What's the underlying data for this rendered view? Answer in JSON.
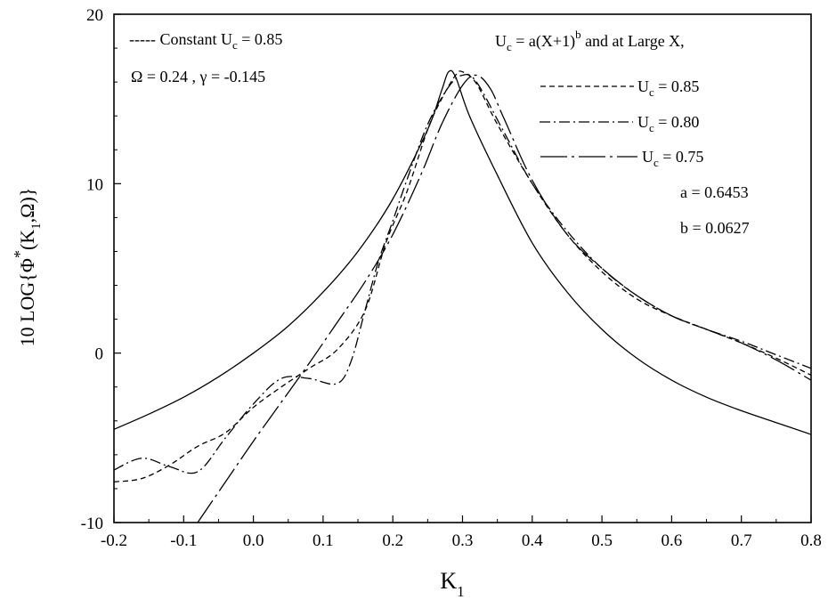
{
  "chart_data": {
    "type": "line",
    "xlabel": {
      "main": "K",
      "sub": "1"
    },
    "ylabel": {
      "parts": [
        "10 LOG{",
        "Φ",
        "*",
        "(K",
        "1",
        ",Ω)}"
      ]
    },
    "xlim": [
      -0.2,
      0.8
    ],
    "ylim": [
      -10,
      20
    ],
    "x_ticks": [
      "-0.2",
      "-0.1",
      "0.0",
      "0.1",
      "0.2",
      "0.3",
      "0.4",
      "0.5",
      "0.6",
      "0.7",
      "0.8"
    ],
    "y_ticks": [
      "-10",
      "0",
      "10",
      "20"
    ],
    "grid": false,
    "annotations": {
      "constant_legend": {
        "prefix": "----- Constant U",
        "sub": "c",
        "suffix": " = 0.85"
      },
      "params": "Ω = 0.24 , γ = -0.145",
      "formula": {
        "pre": "U",
        "sub": "c",
        "mid": " = a(X+1)",
        "sup": "b",
        "post": " and at Large X,"
      },
      "legend": [
        {
          "pre": "U",
          "sub": "c",
          "post": " = 0.85"
        },
        {
          "pre": "U",
          "sub": "c",
          "post": " = 0.80"
        },
        {
          "pre": "U",
          "sub": "c",
          "post": " = 0.75"
        }
      ],
      "a": "a = 0.6453",
      "b": "b = 0.0627"
    },
    "series": [
      {
        "style": "solid",
        "x": [
          -0.2,
          -0.15,
          -0.1,
          -0.05,
          0.0,
          0.05,
          0.1,
          0.15,
          0.2,
          0.25,
          0.27,
          0.28,
          0.29,
          0.31,
          0.35,
          0.4,
          0.45,
          0.5,
          0.55,
          0.6,
          0.65,
          0.7,
          0.75,
          0.8
        ],
        "y": [
          -4.5,
          -3.6,
          -2.6,
          -1.4,
          0.0,
          1.6,
          3.6,
          6.0,
          9.1,
          13.2,
          15.5,
          16.6,
          16.3,
          14.0,
          10.5,
          6.5,
          3.6,
          1.4,
          -0.3,
          -1.6,
          -2.6,
          -3.4,
          -4.1,
          -4.8
        ]
      },
      {
        "style": "dashed",
        "x": [
          -0.2,
          -0.16,
          -0.12,
          -0.08,
          -0.04,
          0.0,
          0.04,
          0.08,
          0.12,
          0.16,
          0.19,
          0.22,
          0.25,
          0.27,
          0.29,
          0.3,
          0.32,
          0.35,
          0.4,
          0.45,
          0.5,
          0.55,
          0.6,
          0.65,
          0.7,
          0.75,
          0.8
        ],
        "y": [
          -7.6,
          -7.4,
          -6.6,
          -5.5,
          -4.7,
          -3.2,
          -2.0,
          -0.9,
          0.2,
          2.5,
          6.5,
          9.5,
          13.2,
          15.0,
          16.4,
          16.6,
          15.9,
          13.5,
          10.0,
          7.0,
          4.8,
          3.2,
          2.2,
          1.4,
          0.6,
          -0.3,
          -1.3
        ]
      },
      {
        "style": "dash-dot",
        "x": [
          -0.2,
          -0.16,
          -0.12,
          -0.08,
          -0.04,
          0.0,
          0.04,
          0.08,
          0.12,
          0.14,
          0.16,
          0.18,
          0.2,
          0.22,
          0.25,
          0.28,
          0.3,
          0.32,
          0.36,
          0.4,
          0.45,
          0.5,
          0.55,
          0.6,
          0.65,
          0.7,
          0.75,
          0.8
        ],
        "y": [
          -6.9,
          -6.2,
          -6.7,
          -7.0,
          -5.0,
          -3.0,
          -1.5,
          -1.5,
          -1.8,
          -0.5,
          2.5,
          5.5,
          7.8,
          10.2,
          13.5,
          15.7,
          16.4,
          16.0,
          13.0,
          10.0,
          7.2,
          5.0,
          3.4,
          2.2,
          1.4,
          0.7,
          -0.1,
          -0.9
        ]
      },
      {
        "style": "long-dash-dot",
        "x": [
          -0.08,
          -0.04,
          0.0,
          0.04,
          0.08,
          0.12,
          0.16,
          0.2,
          0.24,
          0.27,
          0.3,
          0.32,
          0.34,
          0.36,
          0.4,
          0.45,
          0.5,
          0.55,
          0.6,
          0.65,
          0.7,
          0.75,
          0.8
        ],
        "y": [
          -10.0,
          -7.6,
          -5.2,
          -2.9,
          -0.6,
          1.8,
          4.2,
          7.0,
          10.5,
          13.5,
          15.8,
          16.4,
          15.6,
          13.8,
          10.2,
          7.0,
          5.0,
          3.4,
          2.2,
          1.4,
          0.6,
          -0.4,
          -1.6
        ]
      }
    ]
  }
}
